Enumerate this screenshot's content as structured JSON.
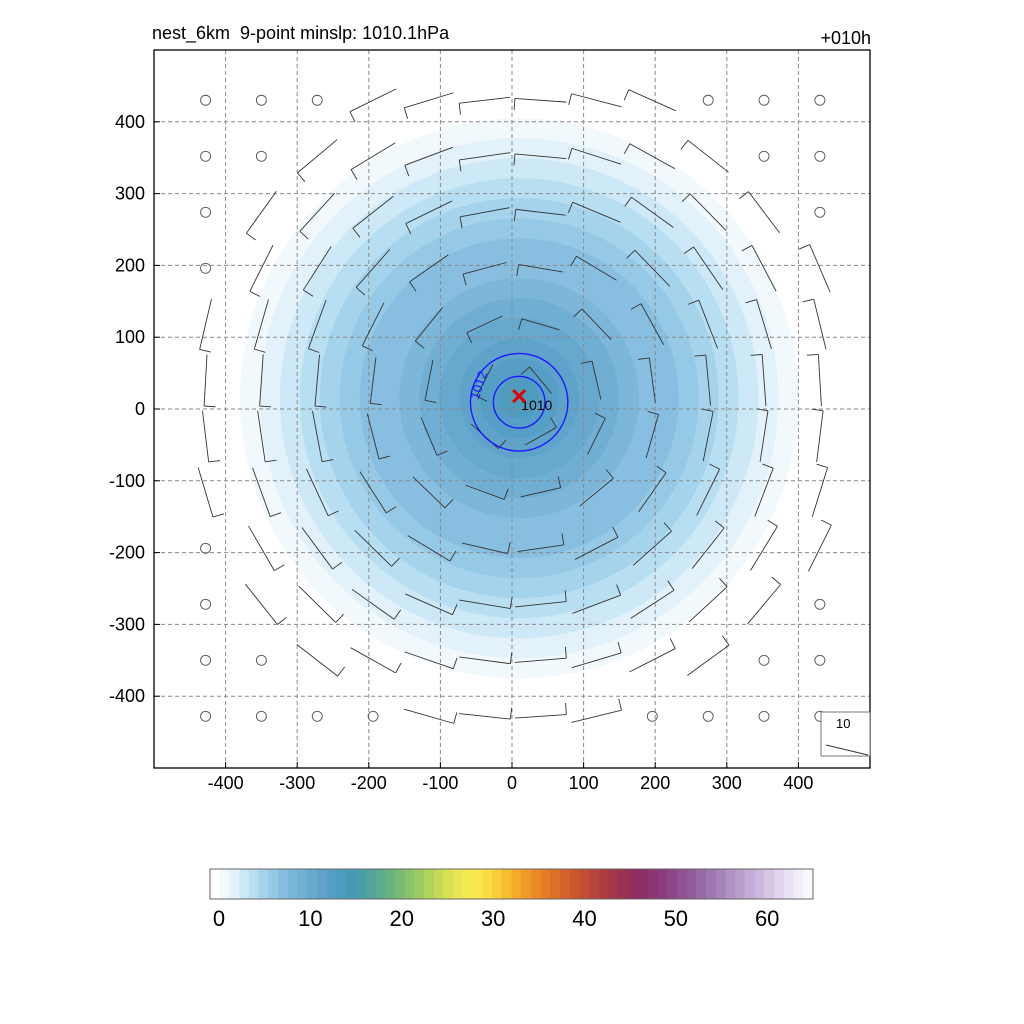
{
  "chart_data": {
    "type": "contour",
    "title": "nest_6km  9-point minslp: 1010.1hPa",
    "time_label": "+010h",
    "xlim": [
      -500,
      500
    ],
    "ylim": [
      -500,
      500
    ],
    "x_ticks": [
      -400,
      -300,
      -200,
      -100,
      0,
      100,
      200,
      300,
      400
    ],
    "y_ticks": [
      400,
      300,
      200,
      100,
      0,
      -100,
      -200,
      -300,
      -400
    ],
    "x_tick_labels": [
      "-400",
      "-300",
      "-200",
      "-100",
      "0",
      "100",
      "200",
      "300",
      "400"
    ],
    "y_tick_labels": [
      "400",
      "300",
      "200",
      "100",
      "0",
      "-100",
      "-200",
      "-300",
      "-400"
    ],
    "grid": true,
    "filled_field": {
      "center": [
        10,
        15
      ],
      "peak_value": 14,
      "radius_of_fade": 390,
      "band_step": 1
    },
    "pressure_contours": [
      {
        "label": "1012",
        "radius": 68,
        "color": "#1a1aff"
      },
      {
        "label": "1010",
        "radius": 36,
        "color": "#1a1aff"
      }
    ],
    "center_marker": {
      "x": 10,
      "y": 18,
      "color": "#e00000"
    },
    "wind_reference": {
      "label": "10"
    },
    "colorbar": {
      "min": 0,
      "max": 66,
      "tick_values": [
        0,
        10,
        20,
        30,
        40,
        50,
        60
      ],
      "tick_labels": [
        "0",
        "10",
        "20",
        "30",
        "40",
        "50",
        "60"
      ],
      "colors": [
        "#ffffff",
        "#f2f9fd",
        "#e2f1fa",
        "#cde8f6",
        "#b8def2",
        "#a6d3ec",
        "#96c9e6",
        "#88bfe0",
        "#7cb6d9",
        "#70aed3",
        "#67a8cf",
        "#5fa3cb",
        "#559fc6",
        "#4d9bbd",
        "#469ab3",
        "#4a9ea9",
        "#53a39c",
        "#5dab8e",
        "#6ab37f",
        "#79bb73",
        "#8ac36a",
        "#9dca63",
        "#b1d25d",
        "#c5da58",
        "#d8e154",
        "#e8e652",
        "#f3ea52",
        "#f8e74d",
        "#f8dd44",
        "#f8ce3a",
        "#f6bd31",
        "#f4aa2a",
        "#f09a27",
        "#ea8b26",
        "#e37d27",
        "#dc6f29",
        "#d4622b",
        "#cb572e",
        "#c14d33",
        "#b74439",
        "#ad3d40",
        "#a43648",
        "#9b3151",
        "#952e5c",
        "#902f67",
        "#8c3472",
        "#8b3c7d",
        "#8b4687",
        "#8e5191",
        "#925c9b",
        "#9869a5",
        "#9f76af",
        "#a783b9",
        "#b091c3",
        "#b99ecc",
        "#c3acd6",
        "#ccb9df",
        "#d6c7e7",
        "#e0d4ef",
        "#ebe2f5",
        "#f4eefa",
        "#fbf8fd"
      ]
    }
  }
}
